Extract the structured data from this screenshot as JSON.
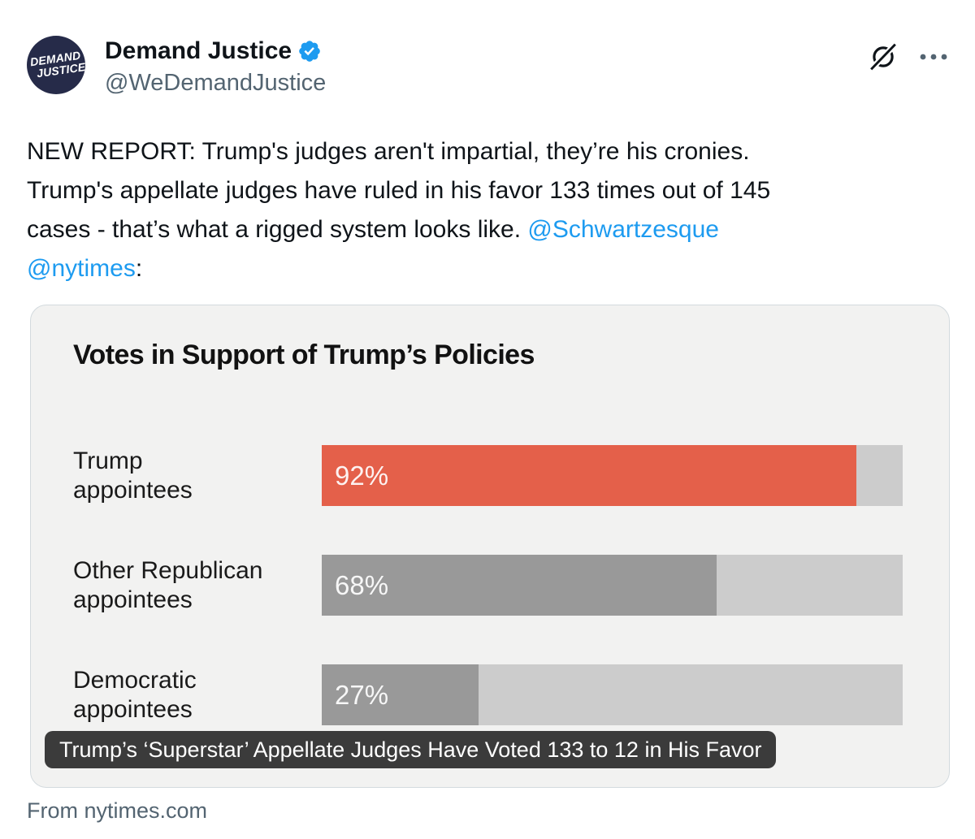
{
  "post": {
    "author": {
      "display_name": "Demand Justice",
      "handle": "@WeDemandJustice",
      "verified": true,
      "avatar_line1": "DEMAND",
      "avatar_line2": "JUSTICE"
    },
    "header_icons": [
      "grok-icon",
      "more-icon"
    ],
    "text_segments": [
      {
        "type": "plain",
        "text": "NEW REPORT: Trump's judges aren't impartial, they’re his cronies.\nTrump's appellate judges have ruled in his favor 133 times out of 145\ncases - that’s what a rigged system looks like. "
      },
      {
        "type": "link",
        "text": "@Schwartzesque"
      },
      {
        "type": "plain",
        "text": "\n"
      },
      {
        "type": "link",
        "text": "@nytimes"
      },
      {
        "type": "plain",
        "text": ":"
      }
    ],
    "source_attribution": "From nytimes.com"
  },
  "card": {
    "title": "Votes in Support of Trump’s Policies",
    "caption": "Trump’s ‘Superstar’ Appellate Judges Have Voted 133 to 12 in His Favor"
  },
  "chart_data": {
    "type": "bar",
    "title": "Votes in Support of Trump’s Policies",
    "categories": [
      "Trump\nappointees",
      "Other Republican\nappointees",
      "Democratic\nappointees"
    ],
    "values": [
      92,
      68,
      27
    ],
    "unit": "%",
    "xlim": [
      0,
      100
    ],
    "orientation": "horizontal",
    "bar_colors": [
      "#e4604a",
      "#999999",
      "#999999"
    ],
    "track_color": "#cccccc",
    "annotation": "Trump’s ‘Superstar’ Appellate Judges Have Voted 133 to 12 in His Favor"
  },
  "colors": {
    "text_primary": "#0f1419",
    "text_secondary": "#536471",
    "link_blue": "#1d9bf0",
    "verified_blue": "#1d9bf0",
    "card_background": "#f2f2f1",
    "card_border": "#d3dade",
    "accent_orange": "#e4604a",
    "bar_gray": "#999999",
    "track_gray": "#cccccc",
    "caption_background": "#3b3b3b",
    "avatar_navy": "#262b49"
  }
}
